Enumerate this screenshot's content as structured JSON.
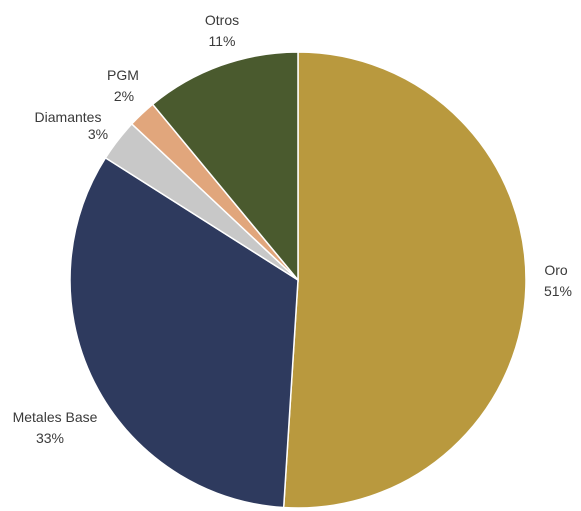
{
  "chart_data": {
    "type": "pie",
    "title": "",
    "start_angle_deg": 0,
    "direction": "clockwise",
    "slices": [
      {
        "label": "Oro",
        "value": 51,
        "value_label": "51%",
        "color": "#B9993E"
      },
      {
        "label": "Metales Base",
        "value": 33,
        "value_label": "33%",
        "color": "#2E3A5E"
      },
      {
        "label": "Diamantes",
        "value": 3,
        "value_label": "3%",
        "color": "#C8C8C8"
      },
      {
        "label": "PGM",
        "value": 2,
        "value_label": "2%",
        "color": "#E1A67C"
      },
      {
        "label": "Otros",
        "value": 11,
        "value_label": "11%",
        "color": "#4A5A2E"
      }
    ]
  }
}
